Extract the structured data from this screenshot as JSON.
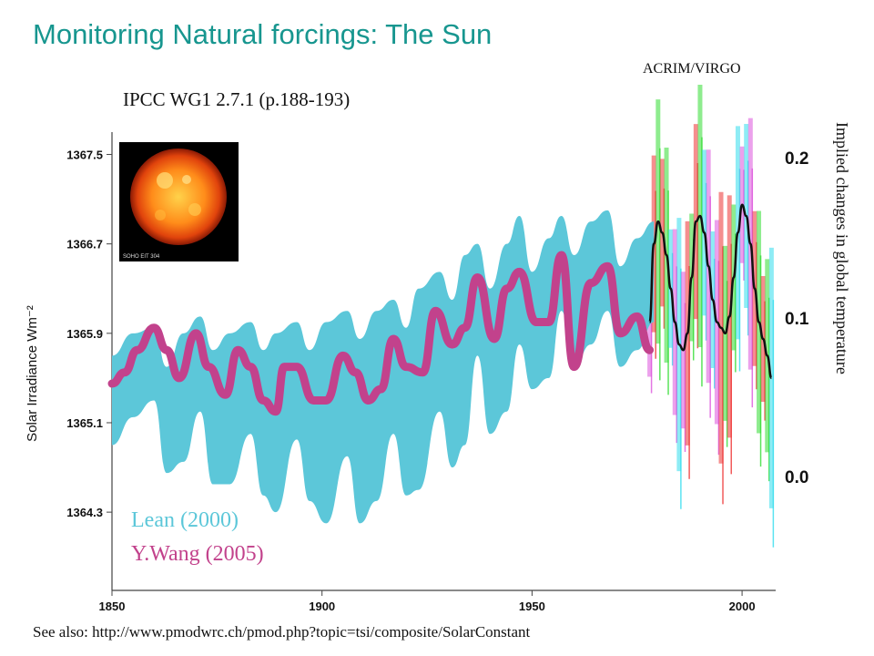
{
  "slide": {
    "title": "Monitoring Natural forcings: The Sun",
    "source_ref": "IPCC WG1 2.7.1 (p.188-193)",
    "composite_label": "ACRIM/VIRGO",
    "footer": "See also: http://www.pmodwrc.ch/pmod.php?topic=tsi/composite/SolarConstant",
    "sun_caption": "SOHO EIT 304"
  },
  "right_axis": {
    "title": "Implied changes in global temperature",
    "ticks": [
      "0.2",
      "0.1",
      "0.0"
    ]
  },
  "colors": {
    "title": "#17968f",
    "lean": "#5cc7d9",
    "wang": "#c2428c",
    "obs_green": "#33dd33",
    "obs_red": "#ee3333",
    "obs_cyan": "#33ddee",
    "obs_magenta": "#dd55dd"
  },
  "chart_data": {
    "type": "area",
    "title": "",
    "xlabel": "",
    "ylabel": "Solar Irradiance Wm⁻²",
    "xlim": [
      1850,
      2008
    ],
    "ylim": [
      1363.6,
      1367.7
    ],
    "x_ticks": [
      "1850",
      "1900",
      "1950",
      "2000"
    ],
    "y_ticks": [
      "1364.3",
      "1365.1",
      "1365.9",
      "1366.7",
      "1367.5"
    ],
    "series": [
      {
        "name": "Lean (2000)",
        "kind": "band",
        "x": [
          1850,
          1855,
          1860,
          1863,
          1867,
          1871,
          1874,
          1878,
          1883,
          1886,
          1889,
          1894,
          1897,
          1901,
          1906,
          1909,
          1913,
          1917,
          1920,
          1923,
          1928,
          1931,
          1934,
          1937,
          1940,
          1944,
          1947,
          1950,
          1954,
          1957,
          1960,
          1964,
          1968,
          1971,
          1975,
          1979
        ],
        "upper": [
          1365.7,
          1365.9,
          1365.95,
          1365.6,
          1365.9,
          1366.05,
          1365.75,
          1365.9,
          1366.0,
          1365.75,
          1365.9,
          1366.0,
          1365.75,
          1366.0,
          1366.1,
          1365.85,
          1366.1,
          1366.2,
          1365.95,
          1366.3,
          1366.45,
          1366.2,
          1366.6,
          1366.7,
          1366.3,
          1366.7,
          1366.95,
          1366.45,
          1366.75,
          1366.95,
          1366.6,
          1366.9,
          1367.0,
          1366.5,
          1366.75,
          1366.9
        ],
        "lower": [
          1364.9,
          1365.15,
          1365.3,
          1364.65,
          1364.75,
          1365.2,
          1364.55,
          1364.55,
          1365.0,
          1364.45,
          1364.3,
          1364.95,
          1364.4,
          1364.2,
          1364.8,
          1364.2,
          1364.4,
          1365.0,
          1364.45,
          1364.5,
          1365.2,
          1364.7,
          1364.9,
          1365.7,
          1365.0,
          1365.2,
          1365.8,
          1365.4,
          1365.5,
          1366.1,
          1365.6,
          1365.8,
          1366.1,
          1365.6,
          1365.75,
          1366.0
        ]
      },
      {
        "name": "Y.Wang (2005)",
        "kind": "line",
        "x": [
          1850,
          1853,
          1856,
          1860,
          1863,
          1866,
          1870,
          1873,
          1877,
          1880,
          1883,
          1886,
          1889,
          1891,
          1894,
          1898,
          1901,
          1905,
          1908,
          1911,
          1914,
          1917,
          1920,
          1924,
          1927,
          1931,
          1934,
          1937,
          1941,
          1944,
          1947,
          1951,
          1954,
          1957,
          1960,
          1964,
          1968,
          1971,
          1975,
          1978
        ],
        "values": [
          1365.45,
          1365.55,
          1365.75,
          1365.95,
          1365.75,
          1365.5,
          1365.9,
          1365.6,
          1365.35,
          1365.75,
          1365.6,
          1365.3,
          1365.2,
          1365.6,
          1365.6,
          1365.3,
          1365.3,
          1365.7,
          1365.55,
          1365.3,
          1365.4,
          1365.85,
          1365.6,
          1365.55,
          1366.1,
          1365.8,
          1365.95,
          1366.4,
          1365.85,
          1366.3,
          1366.45,
          1366.0,
          1366.0,
          1366.6,
          1365.6,
          1366.35,
          1366.5,
          1365.9,
          1366.05,
          1365.75
        ]
      },
      {
        "name": "ACRIM/VIRGO",
        "kind": "line",
        "x": [
          1978,
          1979,
          1980,
          1981,
          1982,
          1983,
          1984,
          1985,
          1986,
          1987,
          1988,
          1989,
          1990,
          1991,
          1992,
          1993,
          1994,
          1995,
          1996,
          1997,
          1998,
          1999,
          2000,
          2001,
          2002,
          2003,
          2004,
          2005,
          2006,
          2007
        ],
        "values": [
          1366.0,
          1366.7,
          1366.9,
          1366.8,
          1366.6,
          1366.3,
          1366.0,
          1365.8,
          1365.75,
          1365.9,
          1366.4,
          1366.9,
          1366.95,
          1366.8,
          1366.5,
          1366.2,
          1366.0,
          1365.95,
          1365.9,
          1366.05,
          1366.4,
          1366.8,
          1367.05,
          1366.95,
          1366.7,
          1366.3,
          1366.0,
          1365.85,
          1365.7,
          1365.5
        ]
      }
    ]
  }
}
